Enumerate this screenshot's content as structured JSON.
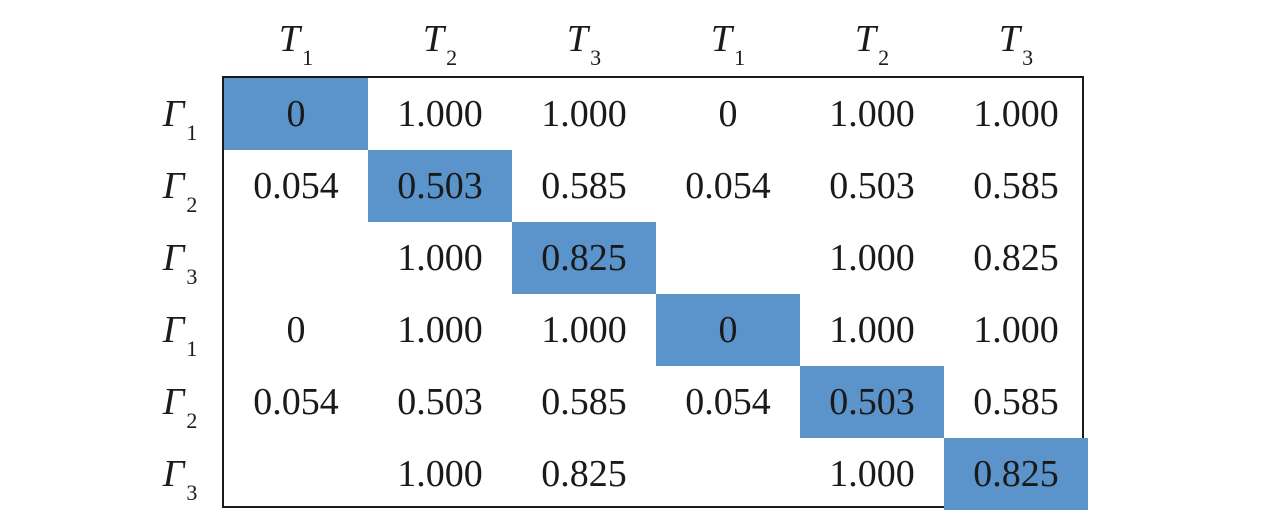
{
  "column_headers": [
    {
      "symbol": "T",
      "sub": "1"
    },
    {
      "symbol": "T",
      "sub": "2"
    },
    {
      "symbol": "T",
      "sub": "3"
    },
    {
      "symbol": "T",
      "sub": "1"
    },
    {
      "symbol": "T",
      "sub": "2"
    },
    {
      "symbol": "T",
      "sub": "3"
    }
  ],
  "row_headers": [
    {
      "symbol": "Γ",
      "sub": "1"
    },
    {
      "symbol": "Γ",
      "sub": "2"
    },
    {
      "symbol": "Γ",
      "sub": "3"
    },
    {
      "symbol": "Γ",
      "sub": "1"
    },
    {
      "symbol": "Γ",
      "sub": "2"
    },
    {
      "symbol": "Γ",
      "sub": "3"
    }
  ],
  "cells": [
    [
      "0",
      "1.000",
      "1.000",
      "0",
      "1.000",
      "1.000"
    ],
    [
      "0.054",
      "0.503",
      "0.585",
      "0.054",
      "0.503",
      "0.585"
    ],
    [
      "",
      "1.000",
      "0.825",
      "",
      "1.000",
      "0.825"
    ],
    [
      "0",
      "1.000",
      "1.000",
      "0",
      "1.000",
      "1.000"
    ],
    [
      "0.054",
      "0.503",
      "0.585",
      "0.054",
      "0.503",
      "0.585"
    ],
    [
      "",
      "1.000",
      "0.825",
      "",
      "1.000",
      "0.825"
    ]
  ],
  "highlight_color": "#5b93cb",
  "highlighted_cells": "diagonal"
}
